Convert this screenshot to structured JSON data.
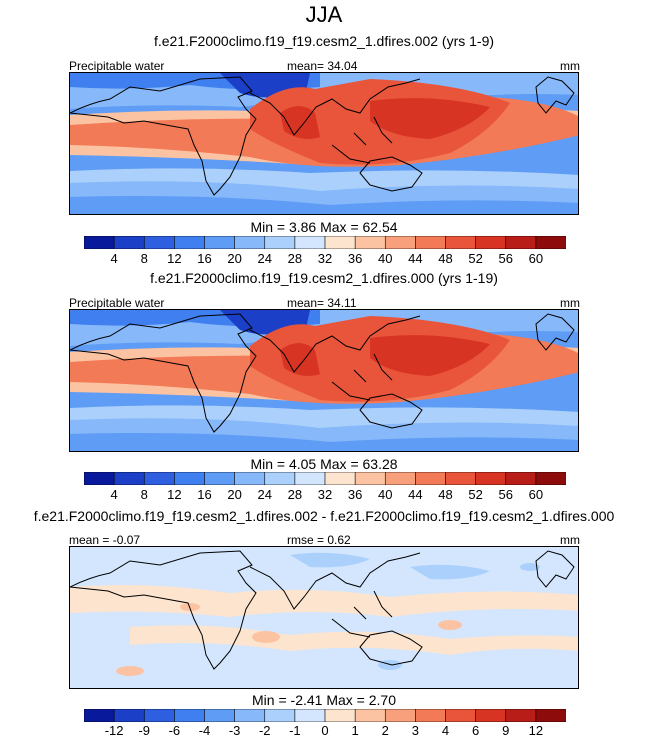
{
  "season_title": "JJA",
  "panels": [
    {
      "title": "f.e21.F2000climo.f19_f19.cesm2_1.dfires.002 (yrs 1-9)",
      "left_label": "Precipitable water",
      "center_label": "mean=  34.04",
      "right_label": "mm",
      "minmax": "Min =   3.86 Max =  62.54",
      "kind": "abs",
      "colorbar": {
        "colors": [
          "#08199c",
          "#1b3fc6",
          "#2d5fe0",
          "#3f7ff0",
          "#5f9cf5",
          "#86b8fa",
          "#abd0fc",
          "#d3e6fd",
          "#fde4cf",
          "#fcc3a2",
          "#f8a07b",
          "#f27a57",
          "#e8553a",
          "#d83424",
          "#b81d18",
          "#8e0b0b"
        ],
        "tick_labels": [
          "4",
          "8",
          "12",
          "16",
          "20",
          "24",
          "28",
          "32",
          "36",
          "40",
          "44",
          "48",
          "52",
          "56",
          "60"
        ]
      }
    },
    {
      "title": "f.e21.F2000climo.f19_f19.cesm2_1.dfires.000 (yrs 1-19)",
      "left_label": "Precipitable water",
      "center_label": "mean=  34.11",
      "right_label": "mm",
      "minmax": "Min =   4.05 Max =  63.28",
      "kind": "abs",
      "colorbar": {
        "colors": [
          "#08199c",
          "#1b3fc6",
          "#2d5fe0",
          "#3f7ff0",
          "#5f9cf5",
          "#86b8fa",
          "#abd0fc",
          "#d3e6fd",
          "#fde4cf",
          "#fcc3a2",
          "#f8a07b",
          "#f27a57",
          "#e8553a",
          "#d83424",
          "#b81d18",
          "#8e0b0b"
        ],
        "tick_labels": [
          "4",
          "8",
          "12",
          "16",
          "20",
          "24",
          "28",
          "32",
          "36",
          "40",
          "44",
          "48",
          "52",
          "56",
          "60"
        ]
      }
    },
    {
      "title": "f.e21.F2000climo.f19_f19.cesm2_1.dfires.002 - f.e21.F2000climo.f19_f19.cesm2_1.dfires.000",
      "left_label": "mean =  -0.07",
      "center_label": "rmse =   0.62",
      "right_label": "mm",
      "minmax": "Min =  -2.41 Max =   2.70",
      "kind": "diff",
      "colorbar": {
        "colors": [
          "#08199c",
          "#1b3fc6",
          "#2d5fe0",
          "#3f7ff0",
          "#5f9cf5",
          "#86b8fa",
          "#abd0fc",
          "#d3e6fd",
          "#fde4cf",
          "#fcc3a2",
          "#f8a07b",
          "#f27a57",
          "#e8553a",
          "#d83424",
          "#b81d18",
          "#8e0b0b"
        ],
        "tick_labels": [
          "-12",
          "-9",
          "-6",
          "-4",
          "-3",
          "-2",
          "-1",
          "0",
          "1",
          "2",
          "3",
          "4",
          "6",
          "9",
          "12"
        ]
      }
    }
  ],
  "chart_data": [
    {
      "type": "heatmap",
      "title": "f.e21.F2000climo.f19_f19.cesm2_1.dfires.002 (yrs 1-9)",
      "variable": "Precipitable water",
      "units": "mm",
      "mean": 34.04,
      "min": 3.86,
      "max": 62.54,
      "contour_levels": [
        4,
        8,
        12,
        16,
        20,
        24,
        28,
        32,
        36,
        40,
        44,
        48,
        52,
        56,
        60
      ]
    },
    {
      "type": "heatmap",
      "title": "f.e21.F2000climo.f19_f19.cesm2_1.dfires.000 (yrs 1-19)",
      "variable": "Precipitable water",
      "units": "mm",
      "mean": 34.11,
      "min": 4.05,
      "max": 63.28,
      "contour_levels": [
        4,
        8,
        12,
        16,
        20,
        24,
        28,
        32,
        36,
        40,
        44,
        48,
        52,
        56,
        60
      ]
    },
    {
      "type": "heatmap",
      "title": "f.e21.F2000climo.f19_f19.cesm2_1.dfires.002 - f.e21.F2000climo.f19_f19.cesm2_1.dfires.000",
      "units": "mm",
      "mean": -0.07,
      "rmse": 0.62,
      "min": -2.41,
      "max": 2.7,
      "contour_levels": [
        -12,
        -9,
        -6,
        -4,
        -3,
        -2,
        -1,
        0,
        1,
        2,
        3,
        4,
        6,
        9,
        12
      ]
    }
  ]
}
